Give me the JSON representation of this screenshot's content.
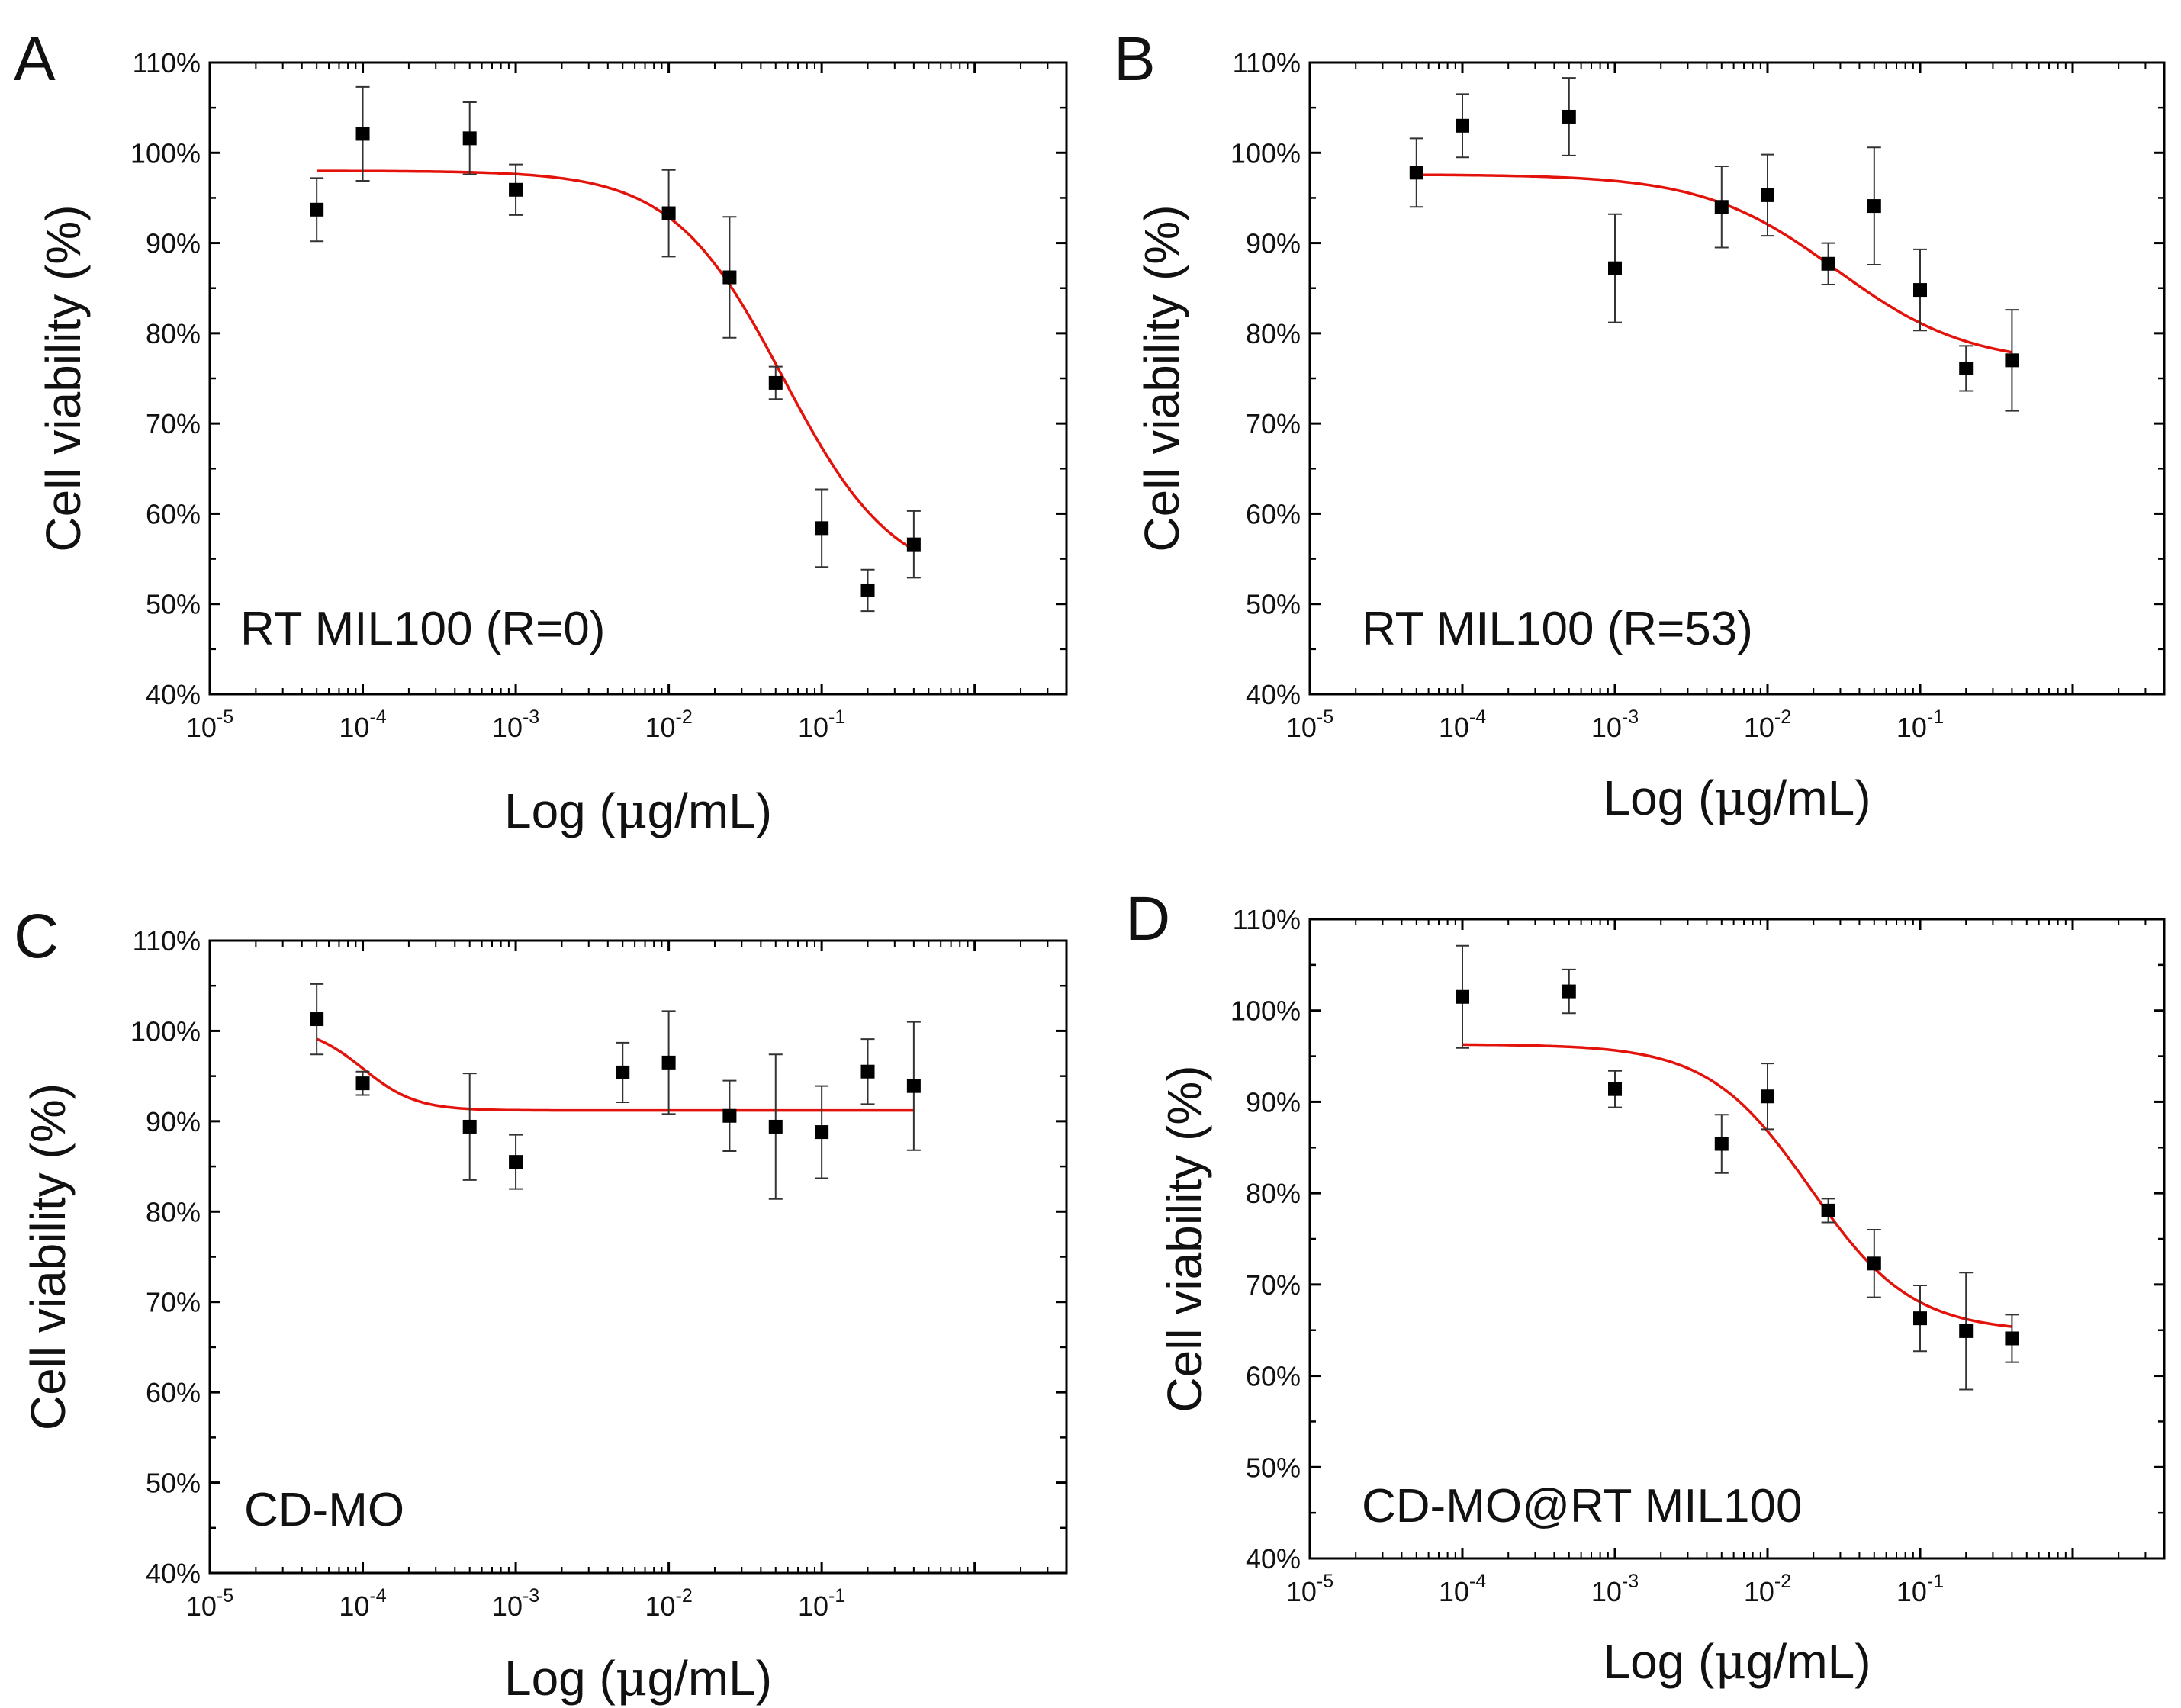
{
  "figure": {
    "xlabel_prefix": "Log (",
    "xlabel_mu": "μ",
    "xlabel_suffix": "g/mL)",
    "ylabel": "Cell viability (%)",
    "colors": {
      "fit_line": "#e3120b",
      "marker": "#000000",
      "axis": "#000000",
      "error_bar": "#333333"
    }
  },
  "chart_data": [
    {
      "panel_letter": "A",
      "type": "scatter",
      "annotation": "RT MIL100 (R=0)",
      "xscale": "log",
      "xlim_exp": [
        -5,
        0.6
      ],
      "ylim": [
        40,
        110
      ],
      "x_ticks": [
        {
          "base": "10",
          "exp": "-5",
          "value": 1e-05
        },
        {
          "base": "10",
          "exp": "-4",
          "value": 0.0001
        },
        {
          "base": "10",
          "exp": "-3",
          "value": 0.001
        },
        {
          "base": "10",
          "exp": "-2",
          "value": 0.01
        },
        {
          "base": "10",
          "exp": "-1",
          "value": 0.1
        }
      ],
      "y_ticks": [
        {
          "label": "40%",
          "value": 40
        },
        {
          "label": "50%",
          "value": 50
        },
        {
          "label": "60%",
          "value": 60
        },
        {
          "label": "70%",
          "value": 70
        },
        {
          "label": "80%",
          "value": 80
        },
        {
          "label": "90%",
          "value": 90
        },
        {
          "label": "100%",
          "value": 100
        },
        {
          "label": "110%",
          "value": 110
        }
      ],
      "points": [
        {
          "x": 5e-05,
          "y": 93.7,
          "err": 3.5
        },
        {
          "x": 0.0001,
          "y": 102.1,
          "err": 5.2
        },
        {
          "x": 0.0005,
          "y": 101.6,
          "err": 4.0
        },
        {
          "x": 0.001,
          "y": 95.9,
          "err": 2.8
        },
        {
          "x": 0.01,
          "y": 93.3,
          "err": 4.8
        },
        {
          "x": 0.025,
          "y": 86.2,
          "err": 6.7
        },
        {
          "x": 0.05,
          "y": 74.5,
          "err": 1.8
        },
        {
          "x": 0.1,
          "y": 58.4,
          "err": 4.3
        },
        {
          "x": 0.2,
          "y": 51.5,
          "err": 2.3
        },
        {
          "x": 0.4,
          "y": 56.6,
          "err": 3.7
        }
      ],
      "fit": {
        "top": 98.0,
        "bottom": 52.0,
        "log_ec50": -1.25,
        "hill": 1.2,
        "x_range": [
          5e-05,
          0.4
        ]
      }
    },
    {
      "panel_letter": "B",
      "type": "scatter",
      "annotation": "RT MIL100 (R=53)",
      "xscale": "log",
      "xlim_exp": [
        -5,
        0.6
      ],
      "ylim": [
        40,
        110
      ],
      "x_ticks": [
        {
          "base": "10",
          "exp": "-5",
          "value": 1e-05
        },
        {
          "base": "10",
          "exp": "-4",
          "value": 0.0001
        },
        {
          "base": "10",
          "exp": "-3",
          "value": 0.001
        },
        {
          "base": "10",
          "exp": "-2",
          "value": 0.01
        },
        {
          "base": "10",
          "exp": "-1",
          "value": 0.1
        }
      ],
      "y_ticks": [
        {
          "label": "40%",
          "value": 40
        },
        {
          "label": "50%",
          "value": 50
        },
        {
          "label": "60%",
          "value": 60
        },
        {
          "label": "70%",
          "value": 70
        },
        {
          "label": "80%",
          "value": 80
        },
        {
          "label": "90%",
          "value": 90
        },
        {
          "label": "100%",
          "value": 100
        },
        {
          "label": "110%",
          "value": 110
        }
      ],
      "points": [
        {
          "x": 5e-05,
          "y": 97.8,
          "err": 3.8
        },
        {
          "x": 0.0001,
          "y": 103.0,
          "err": 3.5
        },
        {
          "x": 0.0005,
          "y": 104.0,
          "err": 4.3
        },
        {
          "x": 0.001,
          "y": 87.2,
          "err": 6.0
        },
        {
          "x": 0.005,
          "y": 94.0,
          "err": 4.5
        },
        {
          "x": 0.01,
          "y": 95.3,
          "err": 4.5
        },
        {
          "x": 0.025,
          "y": 87.7,
          "err": 2.3
        },
        {
          "x": 0.05,
          "y": 94.1,
          "err": 6.5
        },
        {
          "x": 0.1,
          "y": 84.8,
          "err": 4.5
        },
        {
          "x": 0.2,
          "y": 76.1,
          "err": 2.5
        },
        {
          "x": 0.4,
          "y": 77.0,
          "err": 5.6
        }
      ],
      "fit": {
        "top": 97.6,
        "bottom": 76.5,
        "log_ec50": -1.55,
        "hill": 1.0,
        "x_range": [
          5e-05,
          0.4
        ]
      }
    },
    {
      "panel_letter": "C",
      "type": "scatter",
      "annotation": "CD-MO",
      "xscale": "log",
      "xlim_exp": [
        -5,
        0.6
      ],
      "ylim": [
        40,
        110
      ],
      "x_ticks": [
        {
          "base": "10",
          "exp": "-5",
          "value": 1e-05
        },
        {
          "base": "10",
          "exp": "-4",
          "value": 0.0001
        },
        {
          "base": "10",
          "exp": "-3",
          "value": 0.001
        },
        {
          "base": "10",
          "exp": "-2",
          "value": 0.01
        },
        {
          "base": "10",
          "exp": "-1",
          "value": 0.1
        }
      ],
      "y_ticks": [
        {
          "label": "40%",
          "value": 40
        },
        {
          "label": "50%",
          "value": 50
        },
        {
          "label": "60%",
          "value": 60
        },
        {
          "label": "70%",
          "value": 70
        },
        {
          "label": "80%",
          "value": 80
        },
        {
          "label": "90%",
          "value": 90
        },
        {
          "label": "100%",
          "value": 100
        },
        {
          "label": "110%",
          "value": 110
        }
      ],
      "points": [
        {
          "x": 5e-05,
          "y": 101.3,
          "err": 3.9
        },
        {
          "x": 0.0001,
          "y": 94.2,
          "err": 1.3
        },
        {
          "x": 0.0005,
          "y": 89.4,
          "err": 5.9
        },
        {
          "x": 0.001,
          "y": 85.5,
          "err": 3.0
        },
        {
          "x": 0.005,
          "y": 95.4,
          "err": 3.3
        },
        {
          "x": 0.01,
          "y": 96.5,
          "err": 5.7
        },
        {
          "x": 0.025,
          "y": 90.6,
          "err": 3.9
        },
        {
          "x": 0.05,
          "y": 89.4,
          "err": 8.0
        },
        {
          "x": 0.1,
          "y": 88.8,
          "err": 5.1
        },
        {
          "x": 0.2,
          "y": 95.5,
          "err": 3.6
        },
        {
          "x": 0.4,
          "y": 93.9,
          "err": 7.1
        }
      ],
      "fit": {
        "top": 100.5,
        "bottom": 91.2,
        "log_ec50": -4.0,
        "hill": 2.5,
        "x_range": [
          5e-05,
          0.4
        ]
      }
    },
    {
      "panel_letter": "D",
      "type": "scatter",
      "annotation": "CD-MO@RT MIL100",
      "xscale": "log",
      "xlim_exp": [
        -5,
        0.6
      ],
      "ylim": [
        40,
        110
      ],
      "x_ticks": [
        {
          "base": "10",
          "exp": "-5",
          "value": 1e-05
        },
        {
          "base": "10",
          "exp": "-4",
          "value": 0.0001
        },
        {
          "base": "10",
          "exp": "-3",
          "value": 0.001
        },
        {
          "base": "10",
          "exp": "-2",
          "value": 0.01
        },
        {
          "base": "10",
          "exp": "-1",
          "value": 0.1
        }
      ],
      "y_ticks": [
        {
          "label": "40%",
          "value": 40
        },
        {
          "label": "50%",
          "value": 50
        },
        {
          "label": "60%",
          "value": 60
        },
        {
          "label": "70%",
          "value": 70
        },
        {
          "label": "80%",
          "value": 80
        },
        {
          "label": "90%",
          "value": 90
        },
        {
          "label": "100%",
          "value": 100
        },
        {
          "label": "110%",
          "value": 110
        }
      ],
      "points": [
        {
          "x": 0.0001,
          "y": 101.5,
          "err": 5.6
        },
        {
          "x": 0.0005,
          "y": 102.1,
          "err": 2.4
        },
        {
          "x": 0.001,
          "y": 91.4,
          "err": 2.0
        },
        {
          "x": 0.005,
          "y": 85.4,
          "err": 3.2
        },
        {
          "x": 0.01,
          "y": 90.6,
          "err": 3.6
        },
        {
          "x": 0.025,
          "y": 78.1,
          "err": 1.3
        },
        {
          "x": 0.05,
          "y": 72.3,
          "err": 3.7
        },
        {
          "x": 0.1,
          "y": 66.3,
          "err": 3.6
        },
        {
          "x": 0.2,
          "y": 64.9,
          "err": 6.4
        },
        {
          "x": 0.4,
          "y": 64.1,
          "err": 2.6
        }
      ],
      "fit": {
        "top": 96.3,
        "bottom": 64.8,
        "log_ec50": -1.72,
        "hill": 1.3,
        "x_range": [
          0.0001,
          0.4
        ]
      }
    }
  ]
}
